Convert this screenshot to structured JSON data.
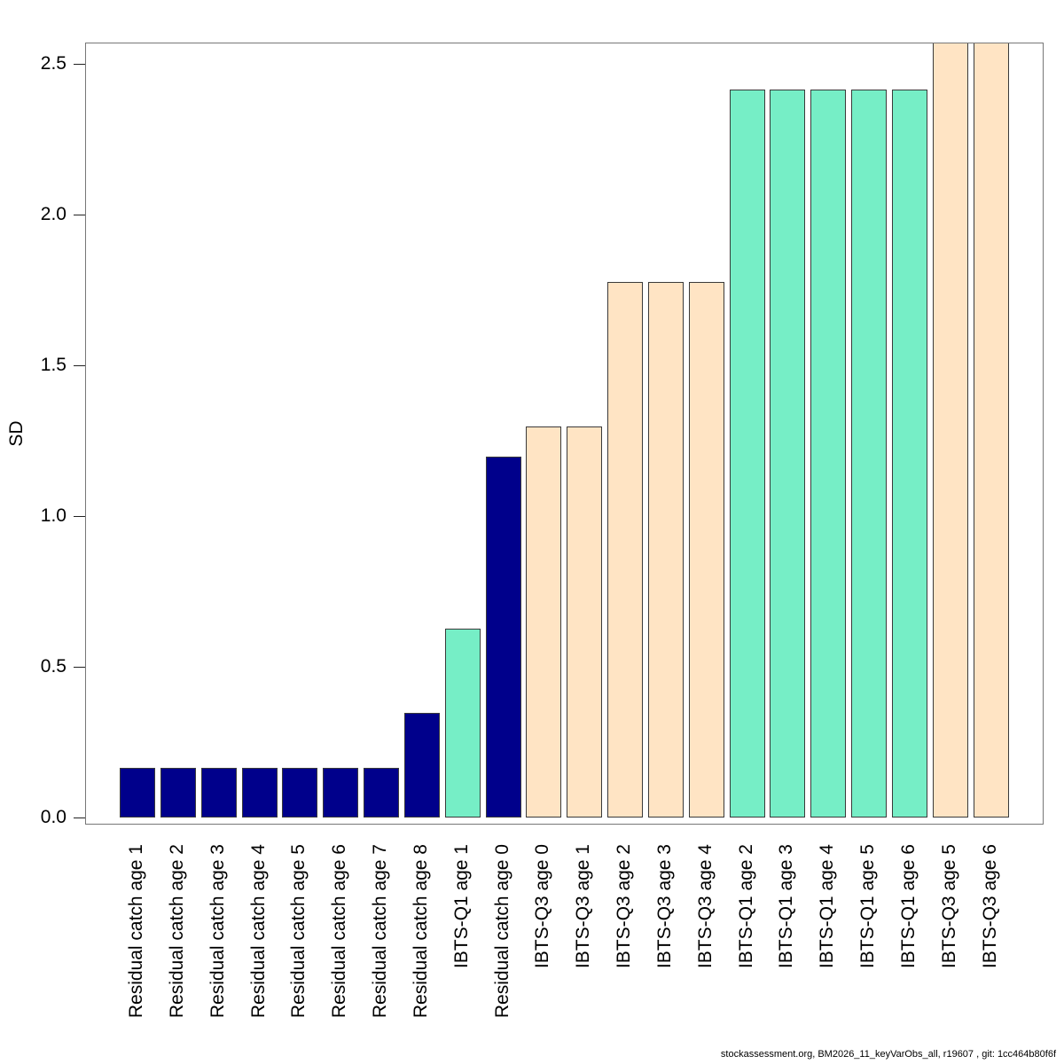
{
  "figure": {
    "ylabel": "SD",
    "footer": "stockassessment.org, BM2026_11_keyVarObs_all, r19607 , git: 1cc464b80f6f"
  },
  "chart_data": {
    "type": "bar",
    "title": "",
    "xlabel": "",
    "ylabel": "SD",
    "ylim": [
      0,
      2.58
    ],
    "grid": false,
    "legend": "none",
    "ytick_labels": [
      "0.0",
      "0.5",
      "1.0",
      "1.5",
      "2.0",
      "2.5"
    ],
    "ytick_values": [
      0.0,
      0.5,
      1.0,
      1.5,
      2.0,
      2.5
    ],
    "categories": [
      "Residual catch age 1",
      "Residual catch age 2",
      "Residual catch age 3",
      "Residual catch age 4",
      "Residual catch age 5",
      "Residual catch age 6",
      "Residual catch age 7",
      "Residual catch age 8",
      "IBTS-Q1 age 1",
      "Residual catch age 0",
      "IBTS-Q3 age 0",
      "IBTS-Q3 age 1",
      "IBTS-Q3 age 2",
      "IBTS-Q3 age 3",
      "IBTS-Q3 age 4",
      "IBTS-Q1 age 2",
      "IBTS-Q1 age 3",
      "IBTS-Q1 age 4",
      "IBTS-Q1 age 5",
      "IBTS-Q1 age 6",
      "IBTS-Q3 age 5",
      "IBTS-Q3 age 6"
    ],
    "values": [
      0.16,
      0.16,
      0.16,
      0.16,
      0.16,
      0.16,
      0.16,
      0.34,
      0.62,
      1.19,
      1.29,
      1.29,
      1.77,
      1.77,
      1.77,
      2.41,
      2.41,
      2.41,
      2.41,
      2.41,
      2.57,
      2.57
    ],
    "groups": [
      "Residual catch",
      "Residual catch",
      "Residual catch",
      "Residual catch",
      "Residual catch",
      "Residual catch",
      "Residual catch",
      "Residual catch",
      "IBTS-Q1",
      "Residual catch",
      "IBTS-Q3",
      "IBTS-Q3",
      "IBTS-Q3",
      "IBTS-Q3",
      "IBTS-Q3",
      "IBTS-Q1",
      "IBTS-Q1",
      "IBTS-Q1",
      "IBTS-Q1",
      "IBTS-Q1",
      "IBTS-Q3",
      "IBTS-Q3"
    ],
    "group_colors": {
      "Residual catch": "#00008B",
      "IBTS-Q1": "#76EEC6",
      "IBTS-Q3": "#FFE4C4"
    },
    "clipped_at_top": [
      false,
      false,
      false,
      false,
      false,
      false,
      false,
      false,
      false,
      false,
      false,
      false,
      false,
      false,
      false,
      false,
      false,
      false,
      false,
      false,
      true,
      true
    ]
  }
}
